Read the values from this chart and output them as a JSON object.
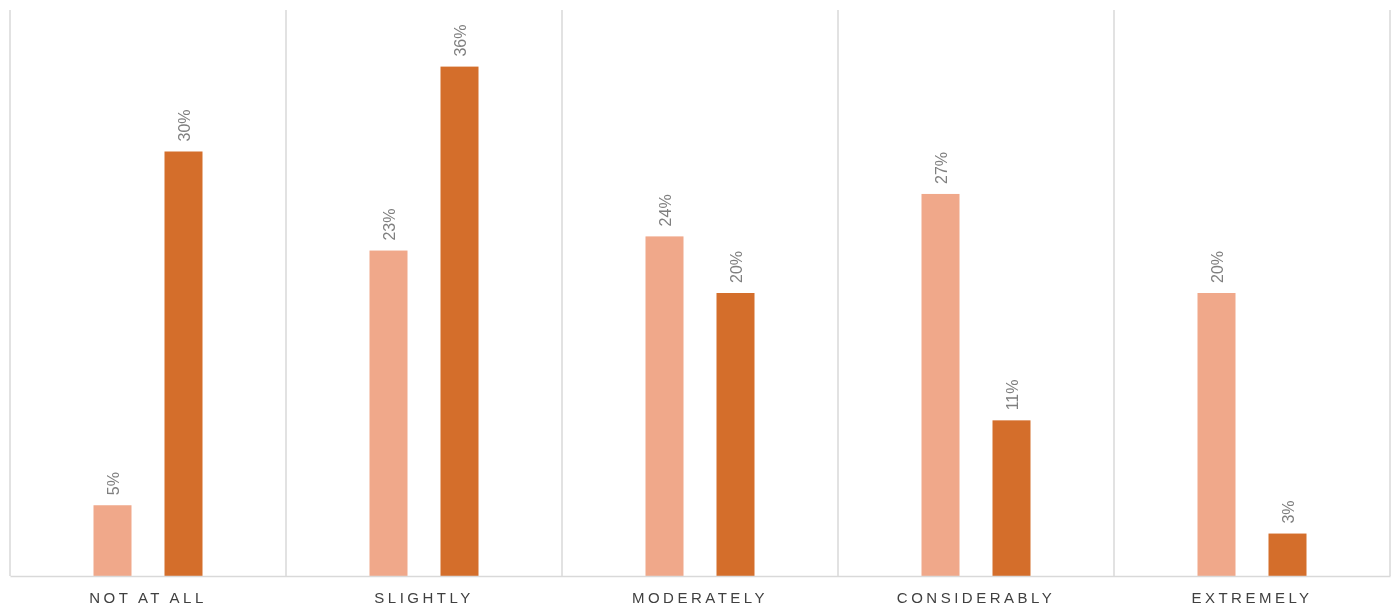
{
  "chart_data": {
    "type": "bar",
    "categories": [
      "NOT AT ALL",
      "SLIGHTLY",
      "MODERATELY",
      "CONSIDERABLY",
      "EXTREMELY"
    ],
    "series": [
      {
        "color": "#f0a88a",
        "values": [
          5,
          23,
          24,
          27,
          20
        ],
        "value_labels": [
          "5%",
          "23%",
          "24%",
          "27%",
          "20%"
        ]
      },
      {
        "color": "#d46e2b",
        "values": [
          30,
          36,
          20,
          11,
          3
        ],
        "value_labels": [
          "30%",
          "36%",
          "20%",
          "11%",
          "3%"
        ]
      }
    ],
    "ylim": [
      0,
      40
    ],
    "grid": "x",
    "tick_labels": "x",
    "legend": false
  }
}
